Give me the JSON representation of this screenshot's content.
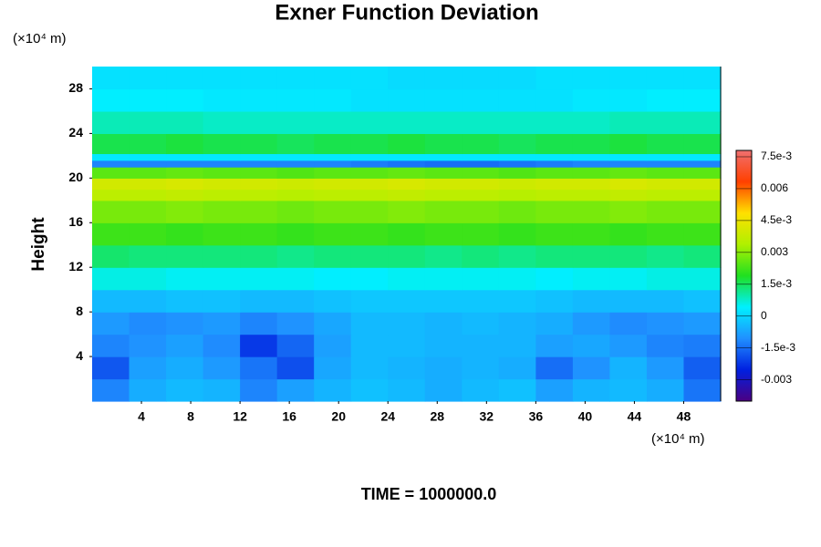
{
  "chart_data": {
    "type": "contour",
    "title": "Exner Function Deviation",
    "x_unit_label": "(×10⁴ m)",
    "y_unit_label": "(×10⁴ m)",
    "ylabel": "Height",
    "footer": "TIME = 1000000.0",
    "xlim": [
      0,
      51
    ],
    "ylim": [
      0,
      30
    ],
    "xticks": [
      4,
      8,
      12,
      16,
      20,
      24,
      28,
      32,
      36,
      40,
      44,
      48
    ],
    "yticks": [
      4,
      8,
      12,
      16,
      20,
      24,
      28
    ],
    "clim": [
      -0.004,
      0.0078
    ],
    "cticks": [
      {
        "value": 0.0075,
        "label": "7.5e-3"
      },
      0.006,
      {
        "value": 0.0045,
        "label": "4.5e-3"
      },
      0.003,
      {
        "value": 0.0015,
        "label": "1.5e-3"
      },
      0,
      {
        "value": -0.0015,
        "label": "-1.5e-3"
      },
      -0.003
    ],
    "colormap": [
      "#4b0082",
      "#0020e0",
      "#2090ff",
      "#00f0ff",
      "#20e020",
      "#b0f000",
      "#ffe000",
      "#ff4000",
      "#f07070"
    ],
    "x_edges": [
      0,
      3,
      6,
      9,
      12,
      15,
      18,
      21,
      24,
      27,
      30,
      33,
      36,
      39,
      42,
      45,
      48,
      51
    ],
    "y_edges": [
      0,
      2,
      4,
      6,
      8,
      10,
      12,
      14,
      16,
      18,
      19,
      20,
      21,
      21.6,
      22.2,
      24,
      26,
      28,
      30
    ],
    "z": [
      [
        -0.0012,
        -0.0006,
        -0.0004,
        -0.0005,
        -0.0012,
        -0.0008,
        -0.0005,
        -0.0003,
        -0.0004,
        -0.0006,
        -0.0004,
        -0.0003,
        -0.0008,
        -0.0005,
        -0.0004,
        -0.0006,
        -0.0014
      ],
      [
        -0.0018,
        -0.0008,
        -0.0006,
        -0.0009,
        -0.0014,
        -0.0019,
        -0.0007,
        -0.0004,
        -0.0005,
        -0.0006,
        -0.0005,
        -0.0006,
        -0.0015,
        -0.001,
        -0.0005,
        -0.0009,
        -0.0017
      ],
      [
        -0.0012,
        -0.001,
        -0.0008,
        -0.0011,
        -0.0022,
        -0.0016,
        -0.0008,
        -0.0004,
        -0.0004,
        -0.0005,
        -0.0005,
        -0.0005,
        -0.0008,
        -0.0007,
        -0.0009,
        -0.0012,
        -0.0013
      ],
      [
        -0.0009,
        -0.0011,
        -0.001,
        -0.0009,
        -0.0012,
        -0.001,
        -0.0007,
        -0.0004,
        -0.0004,
        -0.0005,
        -0.0004,
        -0.0005,
        -0.0006,
        -0.0009,
        -0.0011,
        -0.001,
        -0.0009
      ],
      [
        -0.0004,
        -0.0004,
        -0.0003,
        -0.0003,
        -0.0004,
        -0.0004,
        -0.0003,
        -0.0002,
        -0.0002,
        -0.0002,
        -0.0002,
        -0.0002,
        -0.0003,
        -0.0004,
        -0.0004,
        -0.0004,
        -0.0003
      ],
      [
        0.0006,
        0.0006,
        0.0005,
        0.0005,
        0.0005,
        0.0005,
        0.0004,
        0.0004,
        0.0005,
        0.0005,
        0.0005,
        0.0005,
        0.0004,
        0.0005,
        0.0005,
        0.0006,
        0.0006
      ],
      [
        0.0014,
        0.0013,
        0.0013,
        0.0013,
        0.0013,
        0.0012,
        0.0013,
        0.0013,
        0.0013,
        0.0012,
        0.0013,
        0.0012,
        0.0013,
        0.0013,
        0.0013,
        0.0012,
        0.0013
      ],
      [
        0.0022,
        0.0022,
        0.0021,
        0.0022,
        0.0022,
        0.0021,
        0.0022,
        0.0022,
        0.0021,
        0.0022,
        0.0022,
        0.0021,
        0.0022,
        0.0022,
        0.0021,
        0.0022,
        0.0022
      ],
      [
        0.0028,
        0.0028,
        0.0029,
        0.0028,
        0.0028,
        0.0027,
        0.0028,
        0.0028,
        0.0029,
        0.0028,
        0.0028,
        0.0027,
        0.0028,
        0.0028,
        0.0029,
        0.0028,
        0.0028
      ],
      [
        0.0036,
        0.0036,
        0.0037,
        0.0036,
        0.0036,
        0.0035,
        0.0036,
        0.0036,
        0.0037,
        0.0036,
        0.0036,
        0.0035,
        0.0036,
        0.0036,
        0.0037,
        0.0036,
        0.0036
      ],
      [
        0.004,
        0.004,
        0.0041,
        0.004,
        0.004,
        0.0039,
        0.004,
        0.004,
        0.0041,
        0.004,
        0.004,
        0.0039,
        0.004,
        0.004,
        0.0041,
        0.004,
        0.004
      ],
      [
        0.0025,
        0.0025,
        0.0026,
        0.0025,
        0.0025,
        0.0024,
        0.0025,
        0.0025,
        0.0026,
        0.0025,
        0.0025,
        0.0024,
        0.0025,
        0.0025,
        0.0026,
        0.0025,
        0.0025
      ],
      [
        -0.0012,
        -0.0012,
        -0.0012,
        -0.0012,
        -0.0012,
        -0.0012,
        -0.0012,
        -0.0013,
        -0.0014,
        -0.0015,
        -0.0015,
        -0.0014,
        -0.0013,
        -0.0012,
        -0.0012,
        -0.0012,
        -0.0012
      ],
      [
        0.0003,
        0.0003,
        0.0003,
        0.0003,
        0.0003,
        0.0003,
        0.0003,
        0.0003,
        0.0003,
        0.0003,
        0.0003,
        0.0003,
        0.0003,
        0.0003,
        0.0003,
        0.0003,
        0.0003
      ],
      [
        0.0016,
        0.0016,
        0.0017,
        0.0016,
        0.0016,
        0.0015,
        0.0016,
        0.0016,
        0.0017,
        0.0016,
        0.0016,
        0.0015,
        0.0016,
        0.0016,
        0.0017,
        0.0016,
        0.0016
      ],
      [
        0.0009,
        0.0009,
        0.0009,
        0.0008,
        0.0008,
        0.0008,
        0.0008,
        0.0008,
        0.0008,
        0.0008,
        0.0008,
        0.0008,
        0.0008,
        0.0008,
        0.0009,
        0.0009,
        0.0009
      ],
      [
        0.0004,
        0.0004,
        0.0004,
        0.0003,
        0.0003,
        0.0003,
        0.0003,
        0.0002,
        0.0002,
        0.0002,
        0.0002,
        0.0002,
        0.0002,
        0.0003,
        0.0003,
        0.0004,
        0.0004
      ],
      [
        0.0002,
        0.0002,
        0.0002,
        0.0002,
        0.0002,
        0.0002,
        0.0002,
        0.0002,
        0.0001,
        0.0001,
        0.0001,
        0.0001,
        0.0002,
        0.0002,
        0.0002,
        0.0002,
        0.0002
      ]
    ]
  }
}
